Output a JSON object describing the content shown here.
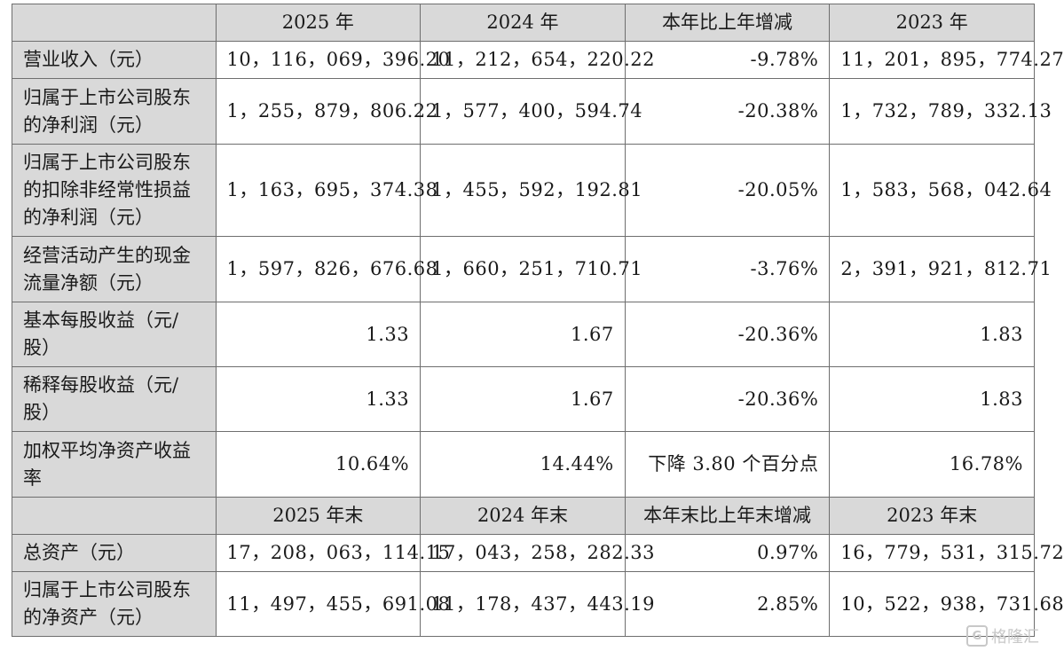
{
  "header1": [
    "",
    "2025 年",
    "2024 年",
    "本年比上年增减",
    "2023 年"
  ],
  "rows1": [
    {
      "label": "营业收入（元）",
      "v2025": "10，116，069，396.20",
      "v2024": "11，212，654，220.22",
      "change": "-9.78%",
      "v2023": "11，201，895，774.27"
    },
    {
      "label": "归属于上市公司股东的净利润（元）",
      "v2025": "1，255，879，806.22",
      "v2024": "1，577，400，594.74",
      "change": "-20.38%",
      "v2023": "1，732，789，332.13"
    },
    {
      "label": "归属于上市公司股东的扣除非经常性损益的净利润（元）",
      "v2025": "1，163，695，374.38",
      "v2024": "1，455，592，192.81",
      "change": "-20.05%",
      "v2023": "1，583，568，042.64"
    },
    {
      "label": "经营活动产生的现金流量净额（元）",
      "v2025": "1，597，826，676.68",
      "v2024": "1，660，251，710.71",
      "change": "-3.76%",
      "v2023": "2，391，921，812.71"
    },
    {
      "label": "基本每股收益（元/股）",
      "v2025": "1.33",
      "v2024": "1.67",
      "change": "-20.36%",
      "v2023": "1.83"
    },
    {
      "label": "稀释每股收益（元/股）",
      "v2025": "1.33",
      "v2024": "1.67",
      "change": "-20.36%",
      "v2023": "1.83"
    },
    {
      "label": "加权平均净资产收益率",
      "v2025": "10.64%",
      "v2024": "14.44%",
      "change": "下降 3.80 个百分点",
      "v2023": "16.78%"
    }
  ],
  "header2": [
    "",
    "2025 年末",
    "2024 年末",
    "本年末比上年末增减",
    "2023 年末"
  ],
  "rows2": [
    {
      "label": "总资产（元）",
      "v2025": "17，208，063，114.15",
      "v2024": "17，043，258，282.33",
      "change": "0.97%",
      "v2023": "16，779，531，315.72"
    },
    {
      "label": "归属于上市公司股东的净资产（元）",
      "v2025": "11，497，455，691.08",
      "v2024": "11，178，437，443.19",
      "change": "2.85%",
      "v2023": "10，522，938，731.68"
    }
  ],
  "watermark": {
    "logo": "G",
    "text": "格隆汇",
    "icon": "gelonghui-logo-icon"
  }
}
